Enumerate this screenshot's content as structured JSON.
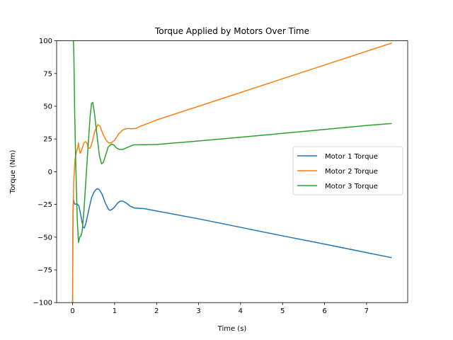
{
  "chart_data": {
    "type": "line",
    "title": "Torque Applied by Motors Over Time",
    "xlabel": "Time (s)",
    "ylabel": "Torque (Nm)",
    "xlim": [
      -0.38,
      7.98
    ],
    "ylim": [
      -100,
      100
    ],
    "xticks": [
      0,
      1,
      2,
      3,
      4,
      5,
      6,
      7
    ],
    "yticks": [
      -100,
      -75,
      -50,
      -25,
      0,
      25,
      50,
      75,
      100
    ],
    "grid": false,
    "legend_position": "center-right",
    "series": [
      {
        "name": "Motor 1 Torque",
        "color": "#1f77b4",
        "points": [
          [
            0.0,
            -100
          ],
          [
            0.01,
            -30
          ],
          [
            0.02,
            -21
          ],
          [
            0.04,
            -24
          ],
          [
            0.06,
            -25
          ],
          [
            0.1,
            -24.5
          ],
          [
            0.15,
            -26
          ],
          [
            0.2,
            -34
          ],
          [
            0.25,
            -42.5
          ],
          [
            0.28,
            -43
          ],
          [
            0.32,
            -39
          ],
          [
            0.38,
            -30
          ],
          [
            0.45,
            -20
          ],
          [
            0.52,
            -15
          ],
          [
            0.58,
            -13
          ],
          [
            0.63,
            -13.5
          ],
          [
            0.7,
            -17
          ],
          [
            0.78,
            -24
          ],
          [
            0.86,
            -29
          ],
          [
            0.9,
            -29.5
          ],
          [
            0.95,
            -28.5
          ],
          [
            1.0,
            -27
          ],
          [
            1.07,
            -24
          ],
          [
            1.13,
            -22.5
          ],
          [
            1.2,
            -22.5
          ],
          [
            1.28,
            -24
          ],
          [
            1.38,
            -26.5
          ],
          [
            1.48,
            -27.8
          ],
          [
            1.6,
            -28
          ],
          [
            1.7,
            -28.2
          ],
          [
            2.0,
            -30
          ],
          [
            3.0,
            -36
          ],
          [
            4.0,
            -42.5
          ],
          [
            5.0,
            -49
          ],
          [
            6.0,
            -55.3
          ],
          [
            7.0,
            -61.8
          ],
          [
            7.6,
            -65.7
          ]
        ]
      },
      {
        "name": "Motor 2 Torque",
        "color": "#ff7f0e",
        "points": [
          [
            0.0,
            -100
          ],
          [
            0.01,
            -35
          ],
          [
            0.03,
            -5
          ],
          [
            0.06,
            10
          ],
          [
            0.09,
            15
          ],
          [
            0.12,
            18
          ],
          [
            0.14,
            22
          ],
          [
            0.16,
            17
          ],
          [
            0.18,
            14
          ],
          [
            0.22,
            17
          ],
          [
            0.27,
            22
          ],
          [
            0.3,
            23
          ],
          [
            0.34,
            22
          ],
          [
            0.38,
            18
          ],
          [
            0.42,
            18
          ],
          [
            0.47,
            23
          ],
          [
            0.53,
            31
          ],
          [
            0.6,
            36
          ],
          [
            0.65,
            35
          ],
          [
            0.72,
            29
          ],
          [
            0.8,
            24
          ],
          [
            0.86,
            22
          ],
          [
            0.92,
            22
          ],
          [
            1.0,
            24
          ],
          [
            1.1,
            29
          ],
          [
            1.2,
            32
          ],
          [
            1.3,
            33
          ],
          [
            1.4,
            32.8
          ],
          [
            1.5,
            33
          ],
          [
            1.6,
            34.5
          ],
          [
            1.8,
            37
          ],
          [
            2.0,
            39.5
          ],
          [
            3.0,
            50
          ],
          [
            4.0,
            60.5
          ],
          [
            5.0,
            71
          ],
          [
            6.0,
            81.5
          ],
          [
            7.0,
            92
          ],
          [
            7.6,
            98.3
          ]
        ]
      },
      {
        "name": "Motor 3 Torque",
        "color": "#2ca02c",
        "points": [
          [
            0.0,
            100
          ],
          [
            0.02,
            100
          ],
          [
            0.03,
            90
          ],
          [
            0.05,
            45
          ],
          [
            0.08,
            0
          ],
          [
            0.11,
            -35
          ],
          [
            0.14,
            -54
          ],
          [
            0.17,
            -50
          ],
          [
            0.2,
            -49
          ],
          [
            0.23,
            -45
          ],
          [
            0.27,
            -30
          ],
          [
            0.32,
            -5
          ],
          [
            0.37,
            20
          ],
          [
            0.42,
            43
          ],
          [
            0.45,
            52
          ],
          [
            0.48,
            53
          ],
          [
            0.52,
            45
          ],
          [
            0.58,
            28
          ],
          [
            0.64,
            12
          ],
          [
            0.69,
            6
          ],
          [
            0.73,
            7
          ],
          [
            0.78,
            12
          ],
          [
            0.85,
            19
          ],
          [
            0.92,
            21
          ],
          [
            0.98,
            20.5
          ],
          [
            1.05,
            18
          ],
          [
            1.12,
            17
          ],
          [
            1.2,
            17
          ],
          [
            1.3,
            18.5
          ],
          [
            1.45,
            20.5
          ],
          [
            1.6,
            20.6
          ],
          [
            2.0,
            20.8
          ],
          [
            3.0,
            23.5
          ],
          [
            4.0,
            26.3
          ],
          [
            5.0,
            29.3
          ],
          [
            6.0,
            32.3
          ],
          [
            7.0,
            35.3
          ],
          [
            7.6,
            36.8
          ]
        ]
      }
    ]
  }
}
